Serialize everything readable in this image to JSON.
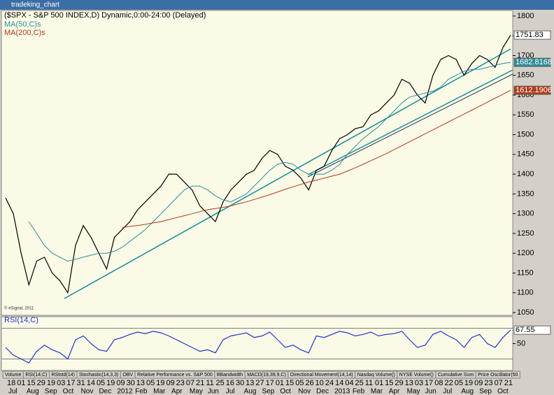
{
  "window_title": "tradeking_chart",
  "chart_data": [
    {
      "type": "line",
      "title": "($SPX - S&P 500 INDEX,D) Dynamic,0:00-24:00 (Delayed)",
      "copyright": "© eSignal, 2011",
      "ylim": [
        1043,
        1814
      ],
      "yticks": [
        1050,
        1100,
        1150,
        1200,
        1250,
        1300,
        1350,
        1400,
        1450,
        1500,
        1550,
        1600,
        1650,
        1700,
        1750,
        1800
      ],
      "series": [
        {
          "name": "$SPX",
          "color": "#000000",
          "values": [
            1340,
            1300,
            1200,
            1120,
            1180,
            1190,
            1150,
            1130,
            1100,
            1220,
            1270,
            1240,
            1200,
            1160,
            1240,
            1260,
            1280,
            1310,
            1330,
            1350,
            1370,
            1400,
            1400,
            1380,
            1360,
            1320,
            1300,
            1280,
            1330,
            1360,
            1380,
            1400,
            1410,
            1440,
            1460,
            1450,
            1420,
            1410,
            1390,
            1360,
            1410,
            1420,
            1460,
            1490,
            1500,
            1515,
            1520,
            1550,
            1560,
            1580,
            1600,
            1640,
            1630,
            1600,
            1580,
            1650,
            1690,
            1700,
            1690,
            1650,
            1680,
            1700,
            1690,
            1670,
            1720,
            1751.83
          ]
        },
        {
          "name": "MA(50,C)s",
          "color": "#2e8b9a",
          "values": [
            null,
            null,
            null,
            1280,
            1250,
            1220,
            1200,
            1190,
            1180,
            1185,
            1190,
            1195,
            1200,
            1200,
            1205,
            1215,
            1230,
            1245,
            1260,
            1280,
            1300,
            1320,
            1340,
            1360,
            1370,
            1370,
            1360,
            1345,
            1335,
            1330,
            1340,
            1350,
            1370,
            1390,
            1410,
            1425,
            1430,
            1425,
            1410,
            1400,
            1400,
            1400,
            1410,
            1425,
            1450,
            1470,
            1490,
            1505,
            1520,
            1540,
            1560,
            1580,
            1595,
            1600,
            1605,
            1610,
            1620,
            1640,
            1650,
            1660,
            1665,
            1665,
            1670,
            1675,
            1680,
            1682.8168
          ]
        },
        {
          "name": "MA(200,C)s",
          "color": "#b03a1a",
          "values": [
            null,
            null,
            null,
            null,
            null,
            null,
            null,
            null,
            null,
            null,
            null,
            null,
            null,
            null,
            null,
            1265,
            1268,
            1270,
            1273,
            1277,
            1280,
            1285,
            1290,
            1295,
            1300,
            1305,
            1310,
            1313,
            1316,
            1320,
            1325,
            1330,
            1336,
            1342,
            1348,
            1355,
            1362,
            1368,
            1374,
            1380,
            1385,
            1390,
            1395,
            1400,
            1408,
            1416,
            1425,
            1434,
            1443,
            1452,
            1462,
            1472,
            1482,
            1492,
            1502,
            1512,
            1522,
            1532,
            1542,
            1552,
            1562,
            1572,
            1582,
            1592,
            1602,
            1612.1906
          ]
        }
      ]
    },
    {
      "type": "line",
      "title": "RSI(14,C)",
      "ylim": [
        15,
        85
      ],
      "yticks": [
        50
      ],
      "hlines": [
        70,
        30
      ],
      "series": [
        {
          "name": "RSI(14,C)",
          "color": "#2233cc",
          "values": [
            45,
            35,
            30,
            25,
            40,
            48,
            42,
            38,
            30,
            55,
            60,
            50,
            42,
            40,
            55,
            58,
            62,
            65,
            63,
            66,
            64,
            60,
            55,
            50,
            45,
            40,
            42,
            38,
            55,
            60,
            62,
            64,
            58,
            60,
            65,
            55,
            45,
            48,
            42,
            38,
            60,
            58,
            62,
            66,
            64,
            60,
            62,
            65,
            60,
            62,
            63,
            66,
            55,
            45,
            48,
            62,
            66,
            60,
            55,
            45,
            58,
            62,
            50,
            45,
            58,
            67.55
          ]
        }
      ]
    }
  ],
  "tabs": [
    "Volume",
    "RSI(14,C)",
    "RStstd(14)",
    "Stochastic(14,3,3)",
    "OBV",
    "Relative Performance vs. S&P 500",
    "BBandwidth",
    "MACD(19,39,9,C)",
    "Directional Movement(14,14)",
    "Nasdaq Volume()",
    "NYSE Volume()",
    "Cumulative Sum",
    "Price Oscillator(50"
  ],
  "x_axis": {
    "days": [
      "18",
      "01",
      "15",
      "29",
      "19",
      "03",
      "17",
      "31",
      "14",
      "05",
      "19",
      "09",
      "30",
      "13",
      "05",
      "19",
      "09",
      "23",
      "07",
      "21",
      "11",
      "25",
      "16",
      "30",
      "13",
      "27",
      "17",
      "01",
      "15",
      "05",
      "26",
      "10",
      "24",
      "14",
      "04",
      "25",
      "11",
      "01",
      "15",
      "29",
      "13",
      "03",
      "17",
      "08",
      "22",
      "05",
      "19",
      "09",
      "23",
      "07",
      "21"
    ],
    "months": [
      "Jul",
      "Aug",
      "Sep",
      "Oct",
      "Nov",
      "Dec",
      "2012",
      "Feb",
      "Mar",
      "Apr",
      "May",
      "Jun",
      "Jul",
      "Aug",
      "Sep",
      "Oct",
      "Nov",
      "Dec",
      "2013",
      "Feb",
      "Mar",
      "Apr",
      "May",
      "Jun",
      "Jul",
      "Aug",
      "Sep",
      "Oct"
    ]
  }
}
